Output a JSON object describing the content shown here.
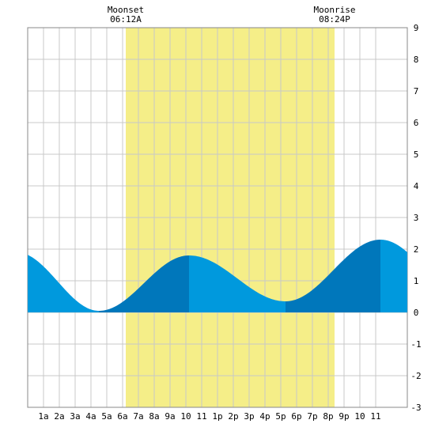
{
  "chart_data": {
    "type": "area",
    "title": "",
    "xlabel": "",
    "ylabel": "",
    "xlim": [
      0,
      24
    ],
    "ylim": [
      -3,
      9
    ],
    "grid": true,
    "y_ticks": [
      -3,
      -2,
      -1,
      0,
      1,
      2,
      3,
      4,
      5,
      6,
      7,
      8,
      9
    ],
    "x_ticks": [
      {
        "x": 1,
        "label": "1a"
      },
      {
        "x": 2,
        "label": "2a"
      },
      {
        "x": 3,
        "label": "3a"
      },
      {
        "x": 4,
        "label": "4a"
      },
      {
        "x": 5,
        "label": "5a"
      },
      {
        "x": 6,
        "label": "6a"
      },
      {
        "x": 7,
        "label": "7a"
      },
      {
        "x": 8,
        "label": "8a"
      },
      {
        "x": 9,
        "label": "9a"
      },
      {
        "x": 10,
        "label": "10"
      },
      {
        "x": 11,
        "label": "11"
      },
      {
        "x": 12,
        "label": "1p"
      },
      {
        "x": 13,
        "label": "2p"
      },
      {
        "x": 14,
        "label": "3p"
      },
      {
        "x": 15,
        "label": "4p"
      },
      {
        "x": 16,
        "label": "5p"
      },
      {
        "x": 17,
        "label": "6p"
      },
      {
        "x": 18,
        "label": "7p"
      },
      {
        "x": 19,
        "label": "8p"
      },
      {
        "x": 20,
        "label": "9p"
      },
      {
        "x": 21,
        "label": "10"
      },
      {
        "x": 22,
        "label": "11"
      }
    ],
    "moon_band": {
      "start": 6.2,
      "end": 19.4,
      "color": "#f5ee88"
    },
    "annotations": [
      {
        "x": 6.2,
        "title": "Moonset",
        "time": "06:12A"
      },
      {
        "x": 19.4,
        "title": "Moonrise",
        "time": "08:24P"
      }
    ],
    "tide_extremes": [
      {
        "x": -0.7,
        "y": 1.9
      },
      {
        "x": 4.5,
        "y": 0.05
      },
      {
        "x": 10.2,
        "y": 1.8
      },
      {
        "x": 16.3,
        "y": 0.35
      },
      {
        "x": 22.3,
        "y": 2.3
      },
      {
        "x": 28.5,
        "y": 0.0
      }
    ],
    "segments": [
      {
        "from": 0,
        "to": 4.5,
        "shade": "light"
      },
      {
        "from": 4.5,
        "to": 10.2,
        "shade": "dark"
      },
      {
        "from": 10.2,
        "to": 16.3,
        "shade": "light"
      },
      {
        "from": 16.3,
        "to": 22.3,
        "shade": "dark"
      },
      {
        "from": 22.3,
        "to": 24,
        "shade": "light"
      }
    ],
    "colors": {
      "light": "#0099dd",
      "dark": "#0077bb",
      "grid": "#c8c8c8",
      "border": "#888888"
    }
  }
}
